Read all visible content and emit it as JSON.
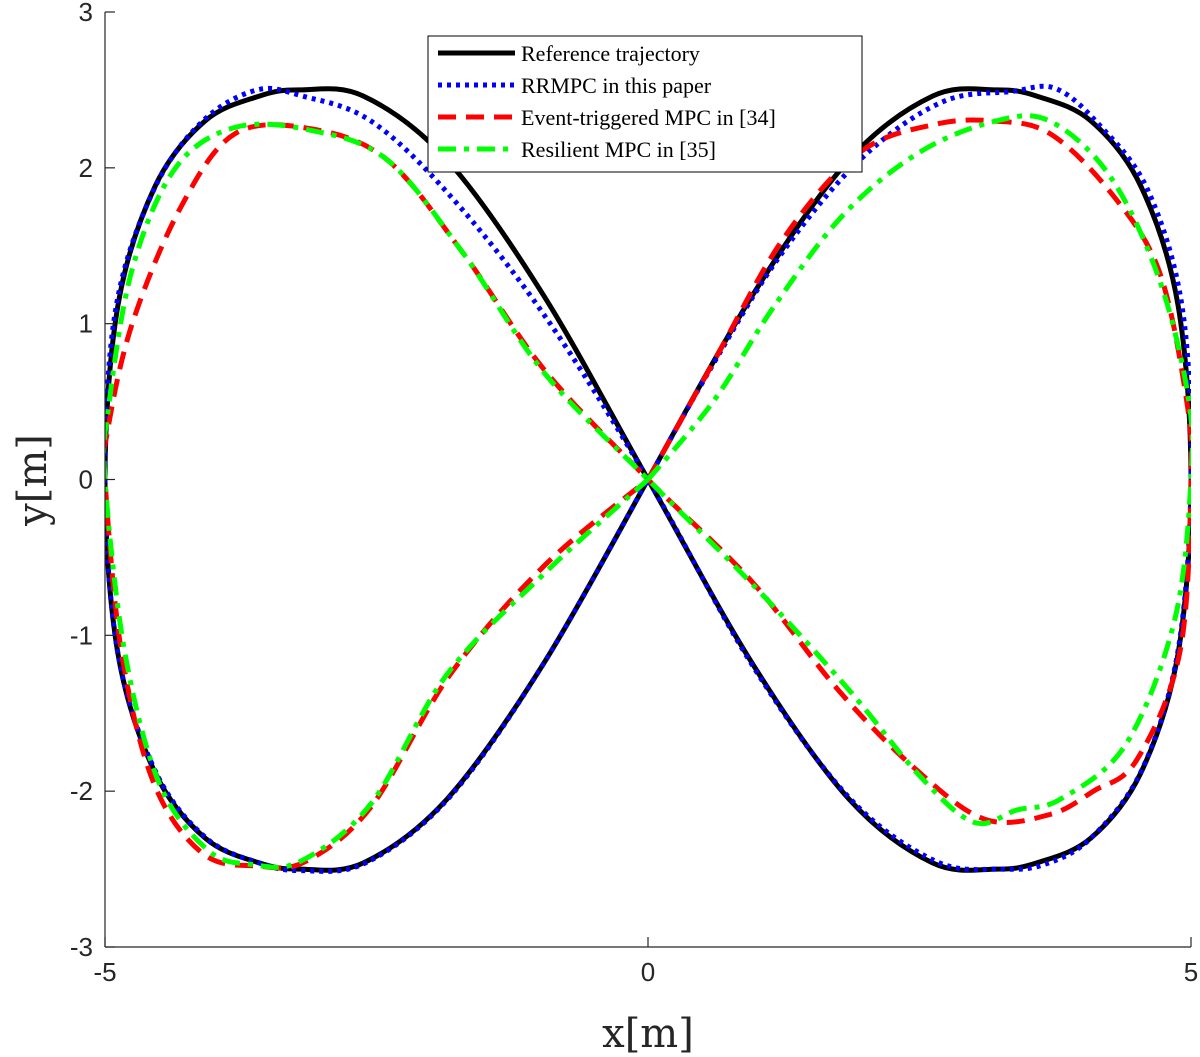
{
  "chart_data": {
    "type": "line",
    "xlabel": "x[m]",
    "ylabel": "y[m]",
    "xlim": [
      -5,
      5
    ],
    "ylim": [
      -3,
      3
    ],
    "xticks": [
      -5,
      0,
      5
    ],
    "xtick_labels": [
      "-5",
      "0",
      "5"
    ],
    "yticks": [
      -3,
      -2,
      -1,
      0,
      1,
      2,
      3
    ],
    "ytick_labels": [
      "-3",
      "-2",
      "-1",
      "0",
      "1",
      "2",
      "3"
    ],
    "grid": false,
    "legend_position": "top-center",
    "series": [
      {
        "name": "Reference trajectory",
        "color": "#000000",
        "style": "solid",
        "x": [
          0,
          0.96,
          1.85,
          2.62,
          3.21,
          3.58,
          4.08,
          4.54,
          4.88,
          5.0,
          4.88,
          4.54,
          4.08,
          3.58,
          3.21,
          2.62,
          1.85,
          0.96,
          0,
          -0.96,
          -1.85,
          -2.62,
          -3.21,
          -3.58,
          -4.08,
          -4.54,
          -4.88,
          -5.0,
          -4.88,
          -4.54,
          -4.08,
          -3.58,
          -3.21,
          -2.62,
          -1.85,
          -0.96,
          0
        ],
        "y": [
          0,
          1.18,
          2.05,
          2.46,
          2.5,
          2.46,
          2.3,
          1.88,
          1.12,
          0,
          -1.12,
          -1.88,
          -2.3,
          -2.46,
          -2.5,
          -2.46,
          -2.05,
          -1.18,
          0,
          1.18,
          2.05,
          2.46,
          2.5,
          2.46,
          2.3,
          1.88,
          1.12,
          0,
          -1.12,
          -1.88,
          -2.3,
          -2.46,
          -2.5,
          -2.46,
          -2.05,
          -1.18,
          0
        ]
      },
      {
        "name": "RRMPC in this paper",
        "color": "#0000ff",
        "style": "dotted",
        "x": [
          0,
          0.55,
          1.2,
          1.95,
          2.7,
          3.35,
          3.75,
          4.15,
          4.6,
          4.92,
          5.0,
          4.88,
          4.55,
          4.08,
          3.65,
          3.25,
          2.65,
          1.85,
          0.95,
          0,
          -0.95,
          -1.82,
          -2.55,
          -3.18,
          -3.6,
          -4.1,
          -4.55,
          -4.9,
          -5.0,
          -4.88,
          -4.53,
          -4.07,
          -3.58,
          -3.2,
          -2.6,
          -1.83,
          -0.96,
          0
        ],
        "y": [
          0,
          0.68,
          1.42,
          2.05,
          2.42,
          2.49,
          2.51,
          2.28,
          1.86,
          1.1,
          0,
          -1.1,
          -1.86,
          -2.3,
          -2.47,
          -2.5,
          -2.45,
          -2.04,
          -1.18,
          0,
          1.05,
          1.82,
          2.3,
          2.46,
          2.5,
          2.3,
          1.86,
          1.1,
          0,
          -1.12,
          -1.88,
          -2.3,
          -2.46,
          -2.51,
          -2.46,
          -2.04,
          -1.18,
          0
        ]
      },
      {
        "name": "Event-triggered MPC in [34]",
        "color": "#ff0000",
        "style": "dashed",
        "x": [
          0,
          0.6,
          1.25,
          1.95,
          2.65,
          3.2,
          3.7,
          4.25,
          4.7,
          4.95,
          5.0,
          4.9,
          4.5,
          4.1,
          3.7,
          3.1,
          2.45,
          1.75,
          0.95,
          0,
          -0.95,
          -1.7,
          -2.4,
          -3.1,
          -3.8,
          -4.3,
          -4.75,
          -4.98,
          -5.0,
          -4.85,
          -4.55,
          -4.1,
          -3.6,
          -3.15,
          -2.55,
          -1.82,
          -0.95,
          0
        ],
        "y": [
          0,
          0.75,
          1.55,
          2.1,
          2.28,
          2.3,
          2.22,
          1.85,
          1.35,
          0.55,
          0,
          -1.1,
          -1.8,
          -2.0,
          -2.15,
          -2.18,
          -1.85,
          -1.35,
          -0.65,
          0,
          0.7,
          1.45,
          2.05,
          2.25,
          2.22,
          1.75,
          1.0,
          0.3,
          0,
          -1.1,
          -1.95,
          -2.4,
          -2.48,
          -2.45,
          -2.1,
          -1.25,
          -0.55,
          0
        ]
      },
      {
        "name": "Resilient MPC in [35]",
        "color": "#00ff00",
        "style": "dashdot",
        "x": [
          0,
          0.6,
          1.15,
          1.8,
          2.5,
          3.2,
          3.7,
          4.25,
          4.7,
          4.97,
          5.0,
          4.85,
          4.4,
          3.8,
          3.4,
          3.0,
          2.5,
          1.85,
          1.0,
          0,
          -0.95,
          -1.7,
          -2.4,
          -3.1,
          -3.8,
          -4.35,
          -4.75,
          -4.97,
          -5.0,
          -4.82,
          -4.5,
          -4.05,
          -3.65,
          -3.2,
          -2.55,
          -1.85,
          -0.95,
          0
        ],
        "y": [
          0,
          0.5,
          1.1,
          1.7,
          2.1,
          2.3,
          2.3,
          1.95,
          1.3,
          0.55,
          0,
          -0.9,
          -1.7,
          -2.05,
          -2.12,
          -2.2,
          -1.9,
          -1.35,
          -0.7,
          0,
          0.68,
          1.45,
          2.05,
          2.24,
          2.26,
          2.0,
          1.35,
          0.45,
          0,
          -1.1,
          -1.95,
          -2.38,
          -2.47,
          -2.45,
          -2.08,
          -1.25,
          -0.6,
          0
        ]
      }
    ]
  }
}
